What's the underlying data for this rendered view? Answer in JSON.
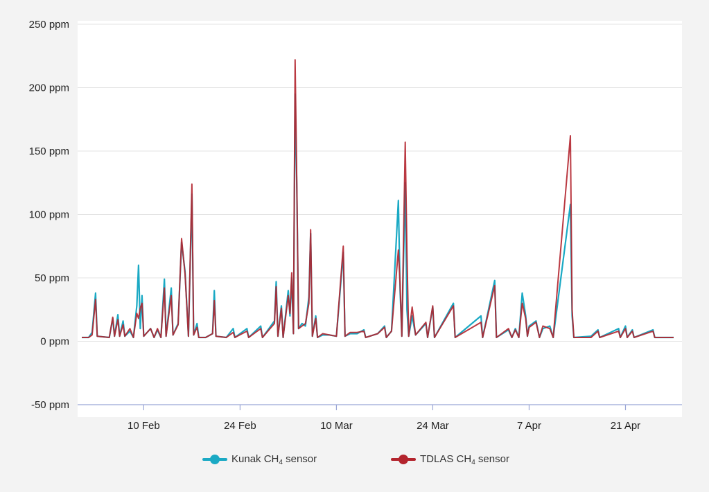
{
  "chart_data": {
    "type": "line",
    "title": "",
    "xlabel": "",
    "ylabel": "",
    "ylim": [
      -50,
      250
    ],
    "xlim": [
      "2025-02-01",
      "2025-04-28"
    ],
    "grid": "horizontal",
    "legend_position": "bottom",
    "y_ticks": [
      "250 ppm",
      "200 ppm",
      "150 ppm",
      "100 ppm",
      "50 ppm",
      "0 ppm",
      "-50 ppm"
    ],
    "y_tick_values": [
      250,
      200,
      150,
      100,
      50,
      0,
      -50
    ],
    "x_ticks": [
      "10 Feb",
      "24 Feb",
      "10 Mar",
      "24 Mar",
      "7 Apr",
      "21 Apr"
    ],
    "x_tick_dates": [
      "2025-02-10",
      "2025-02-24",
      "2025-03-10",
      "2025-03-24",
      "2025-04-07",
      "2025-04-21"
    ],
    "series": [
      {
        "name": "Kunak CH4 sensor",
        "color": "#1aa9c4",
        "points": [
          [
            "2025-02-01",
            3
          ],
          [
            "2025-02-02",
            3
          ],
          [
            "2025-02-02T12:00",
            7
          ],
          [
            "2025-02-03",
            38
          ],
          [
            "2025-02-03T06:00",
            4
          ],
          [
            "2025-02-05",
            3
          ],
          [
            "2025-02-05T12:00",
            18
          ],
          [
            "2025-02-05T18:00",
            4
          ],
          [
            "2025-02-06T06:00",
            21
          ],
          [
            "2025-02-06T12:00",
            4
          ],
          [
            "2025-02-07",
            16
          ],
          [
            "2025-02-07T06:00",
            4
          ],
          [
            "2025-02-08",
            8
          ],
          [
            "2025-02-08T12:00",
            3
          ],
          [
            "2025-02-09",
            28
          ],
          [
            "2025-02-09T06:00",
            60
          ],
          [
            "2025-02-09T12:00",
            10
          ],
          [
            "2025-02-09T18:00",
            36
          ],
          [
            "2025-02-10",
            4
          ],
          [
            "2025-02-11",
            10
          ],
          [
            "2025-02-11T12:00",
            3
          ],
          [
            "2025-02-12",
            9
          ],
          [
            "2025-02-12T12:00",
            3
          ],
          [
            "2025-02-13",
            49
          ],
          [
            "2025-02-13T06:00",
            4
          ],
          [
            "2025-02-14",
            42
          ],
          [
            "2025-02-14T06:00",
            5
          ],
          [
            "2025-02-15",
            14
          ],
          [
            "2025-02-15T12:00",
            78
          ],
          [
            "2025-02-16",
            55
          ],
          [
            "2025-02-16T12:00",
            4
          ],
          [
            "2025-02-17",
            116
          ],
          [
            "2025-02-17T06:00",
            5
          ],
          [
            "2025-02-17T18:00",
            14
          ],
          [
            "2025-02-18",
            3
          ],
          [
            "2025-02-19",
            3
          ],
          [
            "2025-02-20",
            6
          ],
          [
            "2025-02-20T06:00",
            40
          ],
          [
            "2025-02-20T12:00",
            4
          ],
          [
            "2025-02-22",
            3
          ],
          [
            "2025-02-23",
            10
          ],
          [
            "2025-02-23T06:00",
            3
          ],
          [
            "2025-02-25",
            10
          ],
          [
            "2025-02-25T06:00",
            3
          ],
          [
            "2025-02-27",
            12
          ],
          [
            "2025-02-27T06:00",
            3
          ],
          [
            "2025-03-01",
            16
          ],
          [
            "2025-03-01T06:00",
            47
          ],
          [
            "2025-03-01T12:00",
            4
          ],
          [
            "2025-03-02",
            28
          ],
          [
            "2025-03-02T06:00",
            3
          ],
          [
            "2025-03-03",
            40
          ],
          [
            "2025-03-03T06:00",
            20
          ],
          [
            "2025-03-03T12:00",
            50
          ],
          [
            "2025-03-03T18:00",
            6
          ],
          [
            "2025-03-04",
            195
          ],
          [
            "2025-03-04T06:00",
            120
          ],
          [
            "2025-03-04T12:00",
            10
          ],
          [
            "2025-03-05",
            14
          ],
          [
            "2025-03-05T12:00",
            12
          ],
          [
            "2025-03-06",
            35
          ],
          [
            "2025-03-06T06:00",
            85
          ],
          [
            "2025-03-06T12:00",
            4
          ],
          [
            "2025-03-07",
            20
          ],
          [
            "2025-03-07T06:00",
            3
          ],
          [
            "2025-03-08",
            5
          ],
          [
            "2025-03-09",
            5
          ],
          [
            "2025-03-10",
            4
          ],
          [
            "2025-03-11",
            70
          ],
          [
            "2025-03-11T06:00",
            4
          ],
          [
            "2025-03-12",
            6
          ],
          [
            "2025-03-13",
            6
          ],
          [
            "2025-03-14",
            9
          ],
          [
            "2025-03-14T06:00",
            3
          ],
          [
            "2025-03-16",
            6
          ],
          [
            "2025-03-17",
            12
          ],
          [
            "2025-03-17T06:00",
            3
          ],
          [
            "2025-03-18",
            8
          ],
          [
            "2025-03-19",
            111
          ],
          [
            "2025-03-19T06:00",
            40
          ],
          [
            "2025-03-19T12:00",
            4
          ],
          [
            "2025-03-20",
            125
          ],
          [
            "2025-03-20T06:00",
            25
          ],
          [
            "2025-03-20T12:00",
            4
          ],
          [
            "2025-03-21",
            20
          ],
          [
            "2025-03-21T12:00",
            5
          ],
          [
            "2025-03-23",
            14
          ],
          [
            "2025-03-23T06:00",
            3
          ],
          [
            "2025-03-24",
            27
          ],
          [
            "2025-03-24T06:00",
            3
          ],
          [
            "2025-03-27",
            30
          ],
          [
            "2025-03-27T06:00",
            3
          ],
          [
            "2025-03-31",
            20
          ],
          [
            "2025-03-31T06:00",
            3
          ],
          [
            "2025-04-02",
            48
          ],
          [
            "2025-04-02T06:00",
            3
          ],
          [
            "2025-04-04",
            9
          ],
          [
            "2025-04-04T12:00",
            3
          ],
          [
            "2025-04-05",
            10
          ],
          [
            "2025-04-05T12:00",
            3
          ],
          [
            "2025-04-06",
            38
          ],
          [
            "2025-04-06T12:00",
            20
          ],
          [
            "2025-04-06T18:00",
            4
          ],
          [
            "2025-04-07",
            12
          ],
          [
            "2025-04-08",
            16
          ],
          [
            "2025-04-08T12:00",
            3
          ],
          [
            "2025-04-09",
            10
          ],
          [
            "2025-04-10",
            12
          ],
          [
            "2025-04-10T12:00",
            3
          ],
          [
            "2025-04-13",
            108
          ],
          [
            "2025-04-13T06:00",
            20
          ],
          [
            "2025-04-13T12:00",
            3
          ],
          [
            "2025-04-16",
            4
          ],
          [
            "2025-04-17",
            9
          ],
          [
            "2025-04-17T06:00",
            3
          ],
          [
            "2025-04-20",
            10
          ],
          [
            "2025-04-20T06:00",
            3
          ],
          [
            "2025-04-21",
            12
          ],
          [
            "2025-04-21T06:00",
            3
          ],
          [
            "2025-04-22",
            9
          ],
          [
            "2025-04-22T06:00",
            3
          ],
          [
            "2025-04-25",
            9
          ],
          [
            "2025-04-25T06:00",
            3
          ],
          [
            "2025-04-28",
            3
          ]
        ]
      },
      {
        "name": "TDLAS CH4 sensor",
        "color": "#b3242d",
        "points": [
          [
            "2025-02-01",
            3
          ],
          [
            "2025-02-02",
            3
          ],
          [
            "2025-02-02T12:00",
            5
          ],
          [
            "2025-02-03",
            33
          ],
          [
            "2025-02-03T06:00",
            4
          ],
          [
            "2025-02-05",
            3
          ],
          [
            "2025-02-05T12:00",
            19
          ],
          [
            "2025-02-05T18:00",
            4
          ],
          [
            "2025-02-06T06:00",
            17
          ],
          [
            "2025-02-06T12:00",
            4
          ],
          [
            "2025-02-07",
            13
          ],
          [
            "2025-02-07T06:00",
            4
          ],
          [
            "2025-02-08",
            10
          ],
          [
            "2025-02-08T12:00",
            3
          ],
          [
            "2025-02-09",
            22
          ],
          [
            "2025-02-09T06:00",
            18
          ],
          [
            "2025-02-09T12:00",
            26
          ],
          [
            "2025-02-09T18:00",
            30
          ],
          [
            "2025-02-10",
            4
          ],
          [
            "2025-02-11",
            10
          ],
          [
            "2025-02-11T12:00",
            3
          ],
          [
            "2025-02-12",
            10
          ],
          [
            "2025-02-12T12:00",
            3
          ],
          [
            "2025-02-13",
            42
          ],
          [
            "2025-02-13T06:00",
            4
          ],
          [
            "2025-02-14",
            36
          ],
          [
            "2025-02-14T06:00",
            5
          ],
          [
            "2025-02-15",
            13
          ],
          [
            "2025-02-15T12:00",
            81
          ],
          [
            "2025-02-16",
            53
          ],
          [
            "2025-02-16T12:00",
            4
          ],
          [
            "2025-02-17",
            124
          ],
          [
            "2025-02-17T06:00",
            5
          ],
          [
            "2025-02-17T18:00",
            11
          ],
          [
            "2025-02-18",
            3
          ],
          [
            "2025-02-19",
            3
          ],
          [
            "2025-02-20",
            6
          ],
          [
            "2025-02-20T06:00",
            32
          ],
          [
            "2025-02-20T12:00",
            4
          ],
          [
            "2025-02-22",
            3
          ],
          [
            "2025-02-23",
            7
          ],
          [
            "2025-02-23T06:00",
            3
          ],
          [
            "2025-02-25",
            8
          ],
          [
            "2025-02-25T06:00",
            3
          ],
          [
            "2025-02-27",
            10
          ],
          [
            "2025-02-27T06:00",
            3
          ],
          [
            "2025-03-01",
            14
          ],
          [
            "2025-03-01T06:00",
            43
          ],
          [
            "2025-03-01T12:00",
            4
          ],
          [
            "2025-03-02",
            26
          ],
          [
            "2025-03-02T06:00",
            3
          ],
          [
            "2025-03-03",
            36
          ],
          [
            "2025-03-03T06:00",
            22
          ],
          [
            "2025-03-03T12:00",
            54
          ],
          [
            "2025-03-03T18:00",
            6
          ],
          [
            "2025-03-04",
            222
          ],
          [
            "2025-03-04T06:00",
            122
          ],
          [
            "2025-03-04T12:00",
            10
          ],
          [
            "2025-03-05",
            12
          ],
          [
            "2025-03-05T12:00",
            14
          ],
          [
            "2025-03-06",
            30
          ],
          [
            "2025-03-06T06:00",
            88
          ],
          [
            "2025-03-06T12:00",
            4
          ],
          [
            "2025-03-07",
            18
          ],
          [
            "2025-03-07T06:00",
            3
          ],
          [
            "2025-03-08",
            6
          ],
          [
            "2025-03-09",
            5
          ],
          [
            "2025-03-10",
            4
          ],
          [
            "2025-03-11",
            75
          ],
          [
            "2025-03-11T06:00",
            4
          ],
          [
            "2025-03-12",
            7
          ],
          [
            "2025-03-13",
            7
          ],
          [
            "2025-03-14",
            8
          ],
          [
            "2025-03-14T06:00",
            3
          ],
          [
            "2025-03-16",
            6
          ],
          [
            "2025-03-17",
            11
          ],
          [
            "2025-03-17T06:00",
            3
          ],
          [
            "2025-03-18",
            8
          ],
          [
            "2025-03-19",
            72
          ],
          [
            "2025-03-19T06:00",
            45
          ],
          [
            "2025-03-19T12:00",
            4
          ],
          [
            "2025-03-20",
            157
          ],
          [
            "2025-03-20T06:00",
            70
          ],
          [
            "2025-03-20T12:00",
            4
          ],
          [
            "2025-03-21",
            27
          ],
          [
            "2025-03-21T12:00",
            5
          ],
          [
            "2025-03-23",
            15
          ],
          [
            "2025-03-23T06:00",
            3
          ],
          [
            "2025-03-24",
            28
          ],
          [
            "2025-03-24T06:00",
            3
          ],
          [
            "2025-03-27",
            28
          ],
          [
            "2025-03-27T06:00",
            3
          ],
          [
            "2025-03-31",
            15
          ],
          [
            "2025-03-31T06:00",
            3
          ],
          [
            "2025-04-02",
            44
          ],
          [
            "2025-04-02T06:00",
            3
          ],
          [
            "2025-04-04",
            10
          ],
          [
            "2025-04-04T12:00",
            3
          ],
          [
            "2025-04-05",
            9
          ],
          [
            "2025-04-05T12:00",
            3
          ],
          [
            "2025-04-06",
            30
          ],
          [
            "2025-04-06T12:00",
            18
          ],
          [
            "2025-04-06T18:00",
            4
          ],
          [
            "2025-04-07",
            11
          ],
          [
            "2025-04-08",
            15
          ],
          [
            "2025-04-08T12:00",
            3
          ],
          [
            "2025-04-09",
            12
          ],
          [
            "2025-04-10",
            10
          ],
          [
            "2025-04-10T12:00",
            3
          ],
          [
            "2025-04-13",
            162
          ],
          [
            "2025-04-13T06:00",
            25
          ],
          [
            "2025-04-13T12:00",
            3
          ],
          [
            "2025-04-16",
            3
          ],
          [
            "2025-04-17",
            8
          ],
          [
            "2025-04-17T06:00",
            3
          ],
          [
            "2025-04-20",
            8
          ],
          [
            "2025-04-20T06:00",
            3
          ],
          [
            "2025-04-21",
            10
          ],
          [
            "2025-04-21T06:00",
            3
          ],
          [
            "2025-04-22",
            8
          ],
          [
            "2025-04-22T06:00",
            3
          ],
          [
            "2025-04-25",
            8
          ],
          [
            "2025-04-25T06:00",
            3
          ],
          [
            "2025-04-28",
            3
          ]
        ]
      }
    ]
  },
  "legend": {
    "kunak": {
      "prefix": "Kunak CH",
      "sub": "4",
      "suffix": " sensor",
      "color": "#1aa9c4"
    },
    "tdlas": {
      "prefix": "TDLAS CH",
      "sub": "4",
      "suffix": " sensor",
      "color": "#b3242d"
    }
  }
}
